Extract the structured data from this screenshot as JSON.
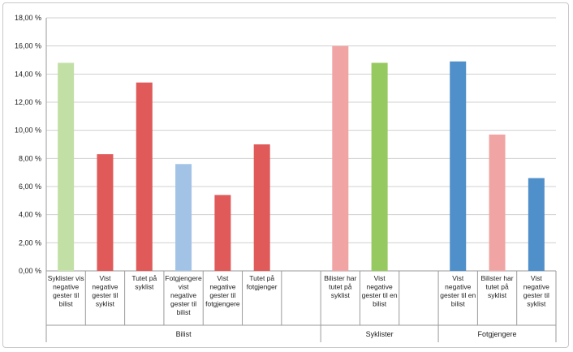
{
  "chart_data": {
    "type": "bar",
    "title": "",
    "xlabel": "",
    "ylabel": "",
    "ylim": [
      0,
      18
    ],
    "yticks": [
      0,
      2,
      4,
      6,
      8,
      10,
      12,
      14,
      16,
      18
    ],
    "ytick_labels": [
      "0,00 %",
      "2,00 %",
      "4,00 %",
      "6,00 %",
      "8,00 %",
      "10,00 %",
      "12,00 %",
      "14,00 %",
      "16,00 %",
      "18,00 %"
    ],
    "grid": true,
    "legend": "none",
    "bars": [
      {
        "label": [
          "Syklister vis",
          "negative",
          "gester til",
          "bilist"
        ],
        "value": 14.8,
        "color": "#c2e0a6"
      },
      {
        "label": [
          "Vist",
          "negative",
          "gester til",
          "syklist"
        ],
        "value": 8.3,
        "color": "#e05a59"
      },
      {
        "label": [
          "Tutet på",
          "syklist"
        ],
        "value": 13.4,
        "color": "#e05a59"
      },
      {
        "label": [
          "Fotgjengere",
          "vist",
          "negative",
          "gester til",
          "bilist"
        ],
        "value": 7.6,
        "color": "#a2c3e5"
      },
      {
        "label": [
          "Vist",
          "negative",
          "gester til",
          "fotgjengere"
        ],
        "value": 5.4,
        "color": "#e05a59"
      },
      {
        "label": [
          "Tutet på",
          "fotgjenger"
        ],
        "value": 9.0,
        "color": "#e05a59"
      },
      {
        "label": [],
        "value": null,
        "color": ""
      },
      {
        "label": [
          "Bilister har",
          "tutet på",
          "syklist"
        ],
        "value": 16.0,
        "color": "#f0a5a4"
      },
      {
        "label": [
          "Vist",
          "negative",
          "gester til en",
          "bilist"
        ],
        "value": 14.8,
        "color": "#96c95f"
      },
      {
        "label": [],
        "value": null,
        "color": ""
      },
      {
        "label": [
          "Vist",
          "negative",
          "gester til en",
          "bilist"
        ],
        "value": 14.9,
        "color": "#4f8fca"
      },
      {
        "label": [
          "Bilister har",
          "tutet på",
          "syklist"
        ],
        "value": 9.7,
        "color": "#f0a5a4"
      },
      {
        "label": [
          "Vist",
          "negative",
          "gester til",
          "syklist"
        ],
        "value": 6.6,
        "color": "#4f8fca"
      }
    ],
    "groups": [
      {
        "name": "Bilist",
        "start": 0,
        "end": 6
      },
      {
        "name": "Syklister",
        "start": 7,
        "end": 9
      },
      {
        "name": "Fotgjengere",
        "start": 10,
        "end": 12
      }
    ]
  }
}
